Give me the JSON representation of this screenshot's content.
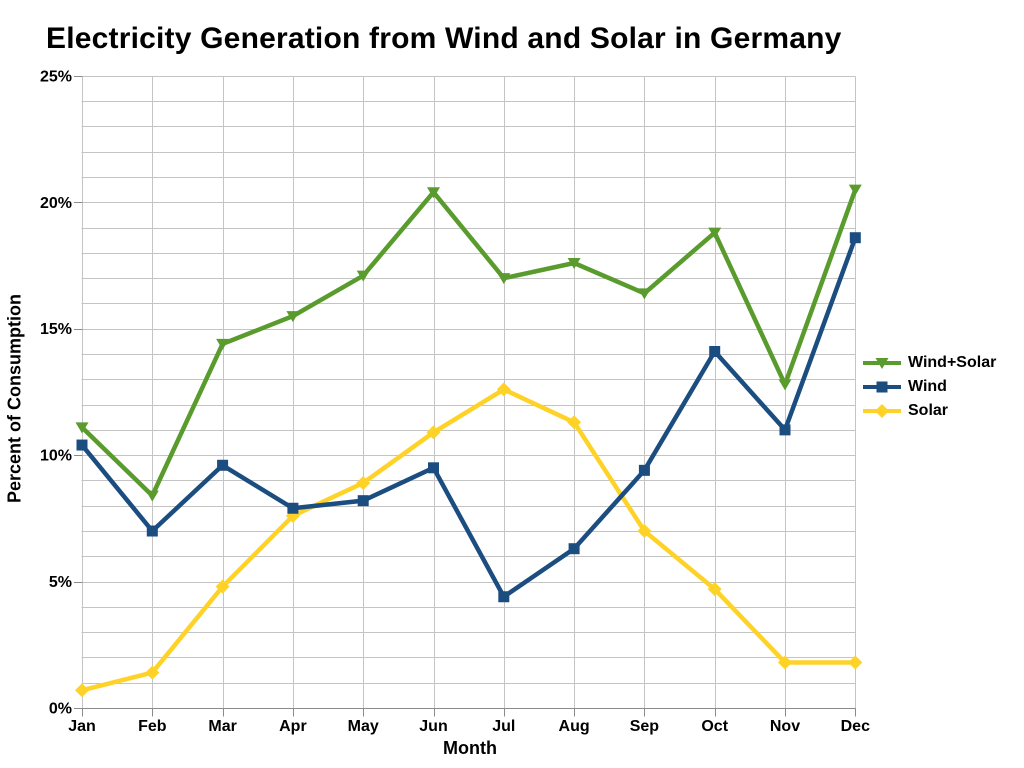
{
  "title": "Electricity Generation from Wind and Solar in Germany",
  "y_axis": {
    "title": "Percent of Consumption",
    "tick_labels": [
      "0%",
      "5%",
      "10%",
      "15%",
      "20%",
      "25%"
    ],
    "major_tick_values": [
      0,
      5,
      10,
      15,
      20,
      25
    ],
    "minor_step": 1,
    "min": 0,
    "max": 25
  },
  "x_axis": {
    "title": "Month"
  },
  "legend": {
    "items": [
      {
        "label": "Wind+Solar",
        "color": "#5A9B2D",
        "marker": "triangle-down"
      },
      {
        "label": "Wind",
        "color": "#1B4D80",
        "marker": "square"
      },
      {
        "label": "Solar",
        "color": "#FFD228",
        "marker": "diamond"
      }
    ]
  },
  "colors": {
    "background": "#FFFFFF",
    "gridline": "#C4C4C4",
    "axis": "#8A8A8A",
    "text": "#000000",
    "wind_solar": "#5A9B2D",
    "wind": "#1B4D80",
    "solar": "#FFD228"
  },
  "chart_data": {
    "type": "line",
    "title": "Electricity Generation from Wind and Solar in Germany",
    "xlabel": "Month",
    "ylabel": "Percent of Consumption",
    "ylim": [
      0,
      25
    ],
    "grid": {
      "horizontal_minor_every": 1,
      "horizontal_major_every": 5,
      "vertical": "per-category"
    },
    "legend_position": "right",
    "categories": [
      "Jan",
      "Feb",
      "Mar",
      "Apr",
      "May",
      "Jun",
      "Jul",
      "Aug",
      "Sep",
      "Oct",
      "Nov",
      "Dec"
    ],
    "series": [
      {
        "name": "Wind+Solar",
        "color": "#5A9B2D",
        "marker": "triangle-down",
        "values": [
          11.1,
          8.4,
          14.4,
          15.5,
          17.1,
          20.4,
          17.0,
          17.6,
          16.4,
          18.8,
          12.8,
          20.5
        ]
      },
      {
        "name": "Wind",
        "color": "#1B4D80",
        "marker": "square",
        "values": [
          10.4,
          7.0,
          9.6,
          7.9,
          8.2,
          9.5,
          4.4,
          6.3,
          9.4,
          14.1,
          11.0,
          18.6
        ]
      },
      {
        "name": "Solar",
        "color": "#FFD228",
        "marker": "diamond",
        "values": [
          0.7,
          1.4,
          4.8,
          7.6,
          8.9,
          10.9,
          12.6,
          11.3,
          7.0,
          4.7,
          1.8,
          1.8
        ]
      }
    ]
  }
}
